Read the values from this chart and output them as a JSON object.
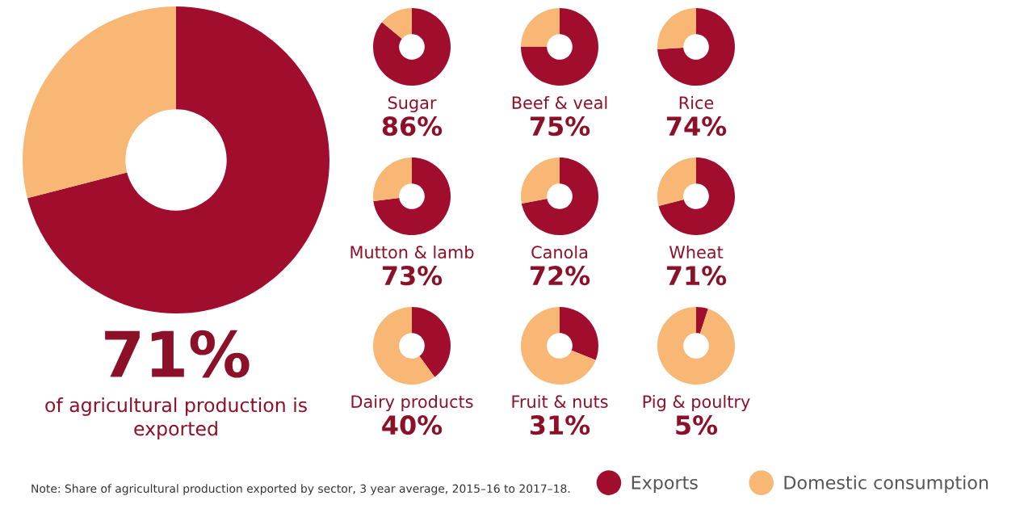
{
  "chart_data": [
    {
      "type": "donut",
      "title": "71%",
      "subtitle": "of agricultural production is exported",
      "categories": [
        "Exports",
        "Domestic consumption"
      ],
      "values": [
        71,
        29
      ],
      "colors": [
        "#a00d2d",
        "#f8b774"
      ],
      "legend": "bottom",
      "annotations": [
        "Note: Share of agricultural production exported by sector, 3 year average, 2015–16 to 2017–18."
      ]
    },
    {
      "type": "donut",
      "title": "Sugar",
      "subtitle": "86%",
      "values": [
        86,
        14
      ],
      "colors": [
        "#a00d2d",
        "#f8b774"
      ]
    },
    {
      "type": "donut",
      "title": "Beef & veal",
      "subtitle": "75%",
      "values": [
        75,
        25
      ],
      "colors": [
        "#a00d2d",
        "#f8b774"
      ]
    },
    {
      "type": "donut",
      "title": "Rice",
      "subtitle": "74%",
      "values": [
        74,
        26
      ],
      "colors": [
        "#a00d2d",
        "#f8b774"
      ]
    },
    {
      "type": "donut",
      "title": "Mutton & lamb",
      "subtitle": "73%",
      "values": [
        73,
        27
      ],
      "colors": [
        "#a00d2d",
        "#f8b774"
      ]
    },
    {
      "type": "donut",
      "title": "Canola",
      "subtitle": "72%",
      "values": [
        72,
        28
      ],
      "colors": [
        "#a00d2d",
        "#f8b774"
      ]
    },
    {
      "type": "donut",
      "title": "Wheat",
      "subtitle": "71%",
      "values": [
        71,
        29
      ],
      "colors": [
        "#a00d2d",
        "#f8b774"
      ]
    },
    {
      "type": "donut",
      "title": "Dairy products",
      "subtitle": "40%",
      "values": [
        40,
        60
      ],
      "colors": [
        "#a00d2d",
        "#f8b774"
      ]
    },
    {
      "type": "donut",
      "title": "Fruit & nuts",
      "subtitle": "31%",
      "values": [
        31,
        69
      ],
      "colors": [
        "#a00d2d",
        "#f8b774"
      ]
    },
    {
      "type": "donut",
      "title": "Pig & poultry",
      "subtitle": "5%",
      "values": [
        5,
        95
      ],
      "colors": [
        "#a00d2d",
        "#f8b774"
      ]
    }
  ]
}
